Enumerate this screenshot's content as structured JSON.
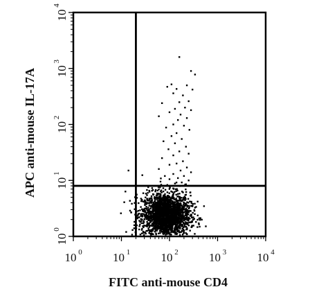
{
  "chart_data": {
    "type": "scatter",
    "xlabel": "FITC anti-mouse CD4",
    "ylabel": "APC anti-mouse IL-17A",
    "x_scale": "log",
    "y_scale": "log",
    "xlim": [
      1,
      10000
    ],
    "ylim": [
      1,
      10000
    ],
    "x_ticks": [
      {
        "base": "10",
        "exp": "0"
      },
      {
        "base": "10",
        "exp": "1"
      },
      {
        "base": "10",
        "exp": "2"
      },
      {
        "base": "10",
        "exp": "3"
      },
      {
        "base": "10",
        "exp": "4"
      }
    ],
    "y_ticks": [
      {
        "base": "10",
        "exp": "0"
      },
      {
        "base": "10",
        "exp": "1"
      },
      {
        "base": "10",
        "exp": "2"
      },
      {
        "base": "10",
        "exp": "3"
      },
      {
        "base": "10",
        "exp": "4"
      }
    ],
    "gates": {
      "x": 20,
      "y": 8
    },
    "grid": false,
    "main_population": {
      "center": [
        85,
        2.4
      ],
      "spread_log10": [
        0.25,
        0.2
      ],
      "count": 2200
    },
    "scattered_events": [
      [
        160,
        1600
      ],
      [
        280,
        900
      ],
      [
        340,
        780
      ],
      [
        110,
        520
      ],
      [
        230,
        500
      ],
      [
        90,
        470
      ],
      [
        140,
        430
      ],
      [
        300,
        420
      ],
      [
        120,
        360
      ],
      [
        190,
        330
      ],
      [
        250,
        260
      ],
      [
        160,
        250
      ],
      [
        70,
        240
      ],
      [
        210,
        200
      ],
      [
        130,
        190
      ],
      [
        280,
        180
      ],
      [
        100,
        165
      ],
      [
        170,
        150
      ],
      [
        60,
        140
      ],
      [
        230,
        130
      ],
      [
        150,
        120
      ],
      [
        120,
        100
      ],
      [
        200,
        95
      ],
      [
        85,
        88
      ],
      [
        260,
        80
      ],
      [
        140,
        70
      ],
      [
        110,
        62
      ],
      [
        180,
        55
      ],
      [
        75,
        50
      ],
      [
        130,
        46
      ],
      [
        220,
        40
      ],
      [
        95,
        36
      ],
      [
        160,
        33
      ],
      [
        250,
        30
      ],
      [
        120,
        28
      ],
      [
        70,
        25
      ],
      [
        190,
        22
      ],
      [
        140,
        20
      ],
      [
        100,
        19
      ],
      [
        230,
        17
      ],
      [
        60,
        16
      ],
      [
        170,
        15
      ],
      [
        280,
        14
      ],
      [
        120,
        13
      ],
      [
        80,
        12
      ],
      [
        200,
        12
      ],
      [
        150,
        11
      ],
      [
        100,
        10.5
      ],
      [
        250,
        10
      ],
      [
        65,
        9.5
      ],
      [
        180,
        9.2
      ],
      [
        130,
        8.8
      ],
      [
        220,
        8.5
      ],
      [
        90,
        8.3
      ],
      [
        14,
        15
      ]
    ]
  }
}
